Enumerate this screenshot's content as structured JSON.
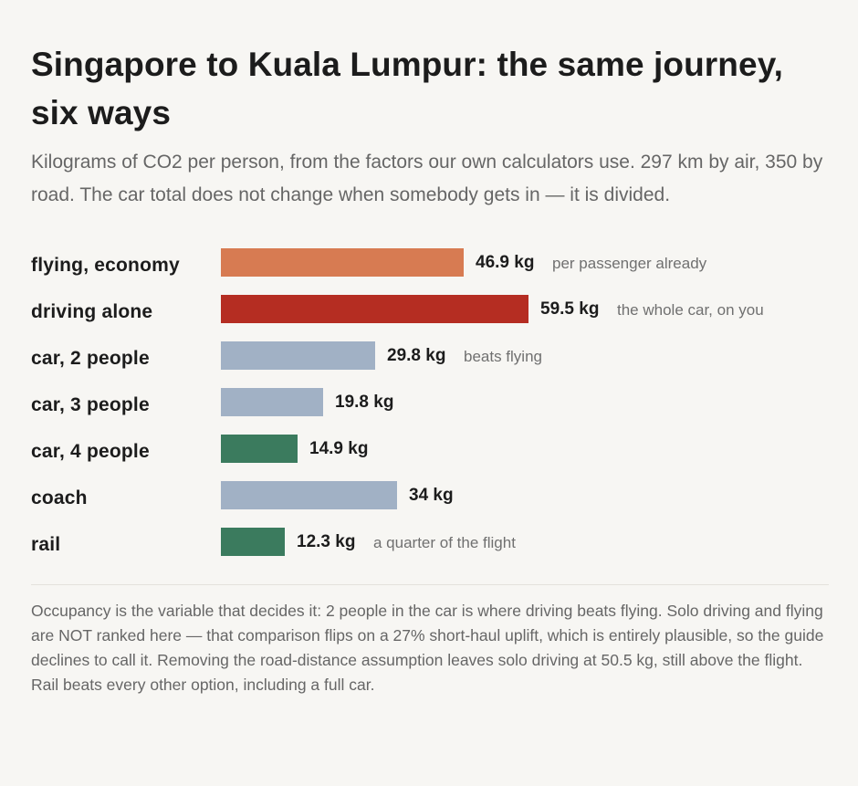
{
  "title": "Singapore to Kuala Lumpur: the same journey, six ways",
  "subtitle": "Kilograms of CO2 per person, from the factors our own calculators use. 297 km by air, 350 by road. The car total does not change when somebody gets in — it is divided.",
  "footnote": "Occupancy is the variable that decides it: 2 people in the car is where driving beats flying. Solo driving and flying are NOT ranked here — that comparison flips on a 27% short-haul uplift, which is entirely plausible, so the guide declines to call it. Removing the road-distance assumption leaves solo driving at 50.5 kg, still above the flight. Rail beats every other option, including a full car.",
  "colors": {
    "flight": "#d77b52",
    "solo": "#b52d22",
    "neutral": "#a1b1c5",
    "good": "#3b7b5e"
  },
  "chart_data": {
    "type": "bar",
    "orientation": "horizontal",
    "unit": "kg",
    "xlim": [
      0,
      59.5
    ],
    "grid": false,
    "bars": [
      {
        "label": "flying, economy",
        "value": 46.9,
        "value_label": "46.9 kg",
        "note": "per passenger already",
        "color": "#d77b52"
      },
      {
        "label": "driving alone",
        "value": 59.5,
        "value_label": "59.5 kg",
        "note": "the whole car, on you",
        "color": "#b52d22"
      },
      {
        "label": "car, 2 people",
        "value": 29.8,
        "value_label": "29.8 kg",
        "note": "beats flying",
        "color": "#a1b1c5"
      },
      {
        "label": "car, 3 people",
        "value": 19.8,
        "value_label": "19.8 kg",
        "note": "",
        "color": "#a1b1c5"
      },
      {
        "label": "car, 4 people",
        "value": 14.9,
        "value_label": "14.9 kg",
        "note": "",
        "color": "#3b7b5e"
      },
      {
        "label": "coach",
        "value": 34,
        "value_label": "34 kg",
        "note": "",
        "color": "#a1b1c5"
      },
      {
        "label": "rail",
        "value": 12.3,
        "value_label": "12.3 kg",
        "note": "a quarter of the flight",
        "color": "#3b7b5e"
      }
    ]
  }
}
